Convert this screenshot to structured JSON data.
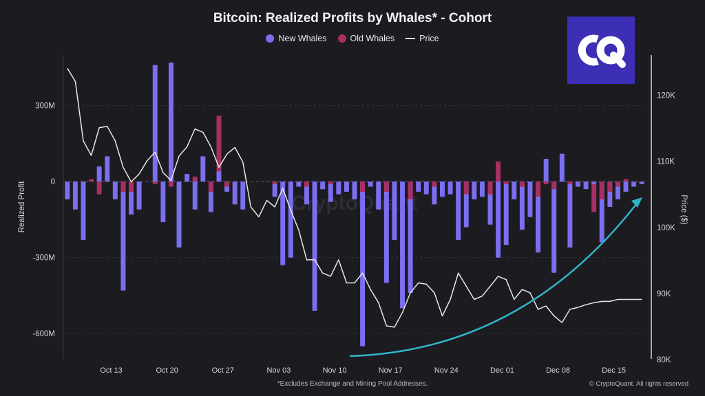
{
  "chart_data": {
    "type": "bar",
    "title": "Bitcoin: Realized Profits by Whales* - Cohort",
    "ylabel": "Realized Profit",
    "y2label": "Price ($)",
    "ylim": [
      -700,
      500
    ],
    "y2lim": [
      80000,
      126000
    ],
    "yticks": [
      {
        "v": 300,
        "label": "300M"
      },
      {
        "v": 0,
        "label": "0"
      },
      {
        "v": -300,
        "label": "-300M"
      },
      {
        "v": -600,
        "label": "-600M"
      }
    ],
    "y2ticks": [
      {
        "v": 120000,
        "label": "120K"
      },
      {
        "v": 110000,
        "label": "110K"
      },
      {
        "v": 100000,
        "label": "100K"
      },
      {
        "v": 90000,
        "label": "90K"
      },
      {
        "v": 80000,
        "label": "80K"
      }
    ],
    "xticks": [
      {
        "i": 5.5,
        "label": "Oct 13"
      },
      {
        "i": 12.5,
        "label": "Oct 20"
      },
      {
        "i": 19.5,
        "label": "Oct 27"
      },
      {
        "i": 26.5,
        "label": "Nov 03"
      },
      {
        "i": 33.5,
        "label": "Nov 10"
      },
      {
        "i": 40.5,
        "label": "Nov 17"
      },
      {
        "i": 47.5,
        "label": "Nov 24"
      },
      {
        "i": 54.5,
        "label": "Dec 01"
      },
      {
        "i": 61.5,
        "label": "Dec 08"
      },
      {
        "i": 68.5,
        "label": "Dec 15"
      }
    ],
    "series": [
      {
        "name": "New Whales",
        "color": "#7b6ff0",
        "values": [
          -70,
          -110,
          -230,
          0,
          60,
          100,
          -70,
          -430,
          -130,
          -110,
          0,
          460,
          -160,
          470,
          -260,
          30,
          -110,
          100,
          -120,
          40,
          -40,
          -90,
          -110,
          0,
          0,
          0,
          -60,
          -330,
          -300,
          -20,
          -90,
          -510,
          -30,
          -80,
          -50,
          -40,
          -70,
          -650,
          -20,
          -110,
          -400,
          -230,
          -500,
          -440,
          -40,
          -50,
          -90,
          -60,
          -50,
          -230,
          -180,
          -70,
          -60,
          -170,
          -300,
          -250,
          -70,
          -190,
          -140,
          -280,
          90,
          -360,
          110,
          -260,
          -20,
          -30,
          -10,
          -240,
          -100,
          -70,
          -40,
          -20,
          -10
        ]
      },
      {
        "name": "Old Whales",
        "color": "#a82f63",
        "values": [
          0,
          0,
          0,
          10,
          -50,
          0,
          0,
          -40,
          -40,
          0,
          0,
          -10,
          0,
          -20,
          0,
          0,
          20,
          0,
          -40,
          260,
          -20,
          0,
          0,
          0,
          0,
          0,
          -10,
          0,
          0,
          0,
          -20,
          0,
          0,
          -10,
          0,
          0,
          0,
          -40,
          0,
          0,
          -40,
          0,
          0,
          -70,
          0,
          0,
          -20,
          0,
          0,
          0,
          -50,
          0,
          0,
          -50,
          80,
          -10,
          0,
          -20,
          0,
          -60,
          -10,
          -30,
          0,
          -10,
          0,
          0,
          -120,
          -70,
          -40,
          -20,
          10,
          0,
          0
        ]
      },
      {
        "name": "Price",
        "color": "#e8e8ec",
        "values": [
          124000,
          122000,
          113000,
          110800,
          115000,
          115200,
          113000,
          109000,
          106800,
          108000,
          110000,
          111300,
          108200,
          107000,
          110700,
          112100,
          114800,
          114300,
          112100,
          109000,
          111000,
          112000,
          109800,
          103000,
          101500,
          104000,
          103000,
          105800,
          102500,
          99500,
          95000,
          95000,
          93000,
          92500,
          95000,
          91500,
          91500,
          93000,
          90500,
          88500,
          85000,
          84800,
          87000,
          90000,
          91500,
          91300,
          90000,
          86500,
          89000,
          93000,
          91000,
          89000,
          89500,
          91000,
          92500,
          92000,
          89000,
          90500,
          90000,
          87500,
          88000,
          86500,
          85500,
          87500,
          87800,
          88200,
          88500,
          88700,
          88700,
          89000,
          89000,
          89000,
          89000
        ]
      }
    ],
    "annotations": [
      "trend-arrow"
    ]
  },
  "footnote": "*Excludes Exchange and Mining Pool Addresses.",
  "copyright": "© CryptoQuant. All rights reserved",
  "watermark": "CryptoQuant",
  "logo_icon": "cryptoquant-logo-icon"
}
